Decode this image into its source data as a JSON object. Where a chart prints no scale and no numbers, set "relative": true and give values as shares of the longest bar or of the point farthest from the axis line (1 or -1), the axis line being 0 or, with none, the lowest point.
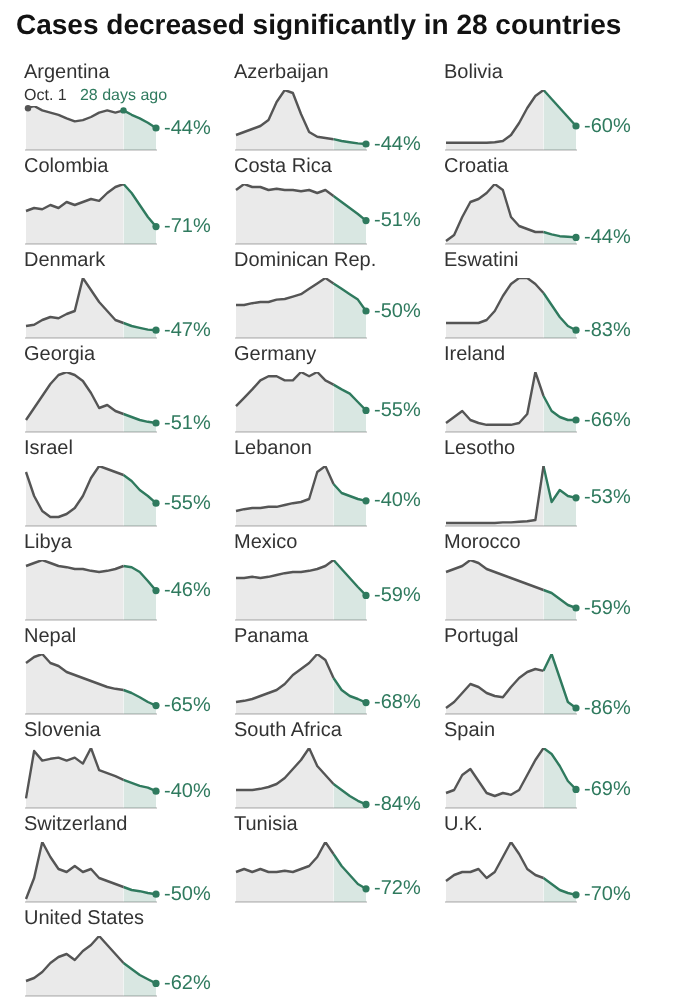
{
  "chart_data": [
    {
      "type": "area",
      "title": "Argentina",
      "relative": true,
      "annotations": [
        "Cases decreased significantly in 28 countries",
        "Oct. 1",
        "28 days ago",
        "-44%"
      ],
      "categories": [
        null,
        null,
        null,
        null,
        null,
        null,
        null,
        null,
        null,
        null,
        null,
        null,
        null,
        null,
        null,
        null,
        null
      ],
      "series": [
        {
          "color": "#555555",
          "values": [
            0.95,
            1,
            0.9,
            0.85,
            0.8,
            0.72,
            0.65,
            0.68,
            0.75,
            0.85,
            0.9,
            0.85,
            0.9,
            null,
            null,
            null,
            null
          ]
        },
        {
          "color": "#2f7a5e",
          "values": [
            null,
            null,
            null,
            null,
            null,
            null,
            null,
            null,
            null,
            null,
            null,
            null,
            0.9,
            0.8,
            0.72,
            0.62,
            0.5
          ]
        }
      ]
    },
    {
      "type": "area",
      "title": "Azerbaijan",
      "relative": true,
      "annotations": [
        "-44%"
      ],
      "categories": [
        null,
        null,
        null,
        null,
        null,
        null,
        null,
        null,
        null,
        null,
        null,
        null,
        null,
        null,
        null,
        null,
        null
      ],
      "series": [
        {
          "color": "#555555",
          "values": [
            0.25,
            0.3,
            0.35,
            0.4,
            0.5,
            0.8,
            1,
            0.95,
            0.6,
            0.3,
            0.22,
            0.2,
            0.18,
            null,
            null,
            null,
            null
          ]
        },
        {
          "color": "#2f7a5e",
          "values": [
            null,
            null,
            null,
            null,
            null,
            null,
            null,
            null,
            null,
            null,
            null,
            null,
            0.18,
            0.15,
            0.13,
            0.11,
            0.1
          ]
        }
      ]
    },
    {
      "type": "area",
      "title": "Bolivia",
      "relative": true,
      "annotations": [
        "-60%"
      ],
      "categories": [
        null,
        null,
        null,
        null,
        null,
        null,
        null,
        null,
        null,
        null,
        null,
        null,
        null,
        null,
        null,
        null,
        null
      ],
      "series": [
        {
          "color": "#555555",
          "values": [
            0.12,
            0.12,
            0.12,
            0.12,
            0.12,
            0.12,
            0.13,
            0.15,
            0.25,
            0.45,
            0.7,
            0.9,
            1,
            null,
            null,
            null,
            null
          ]
        },
        {
          "color": "#2f7a5e",
          "values": [
            null,
            null,
            null,
            null,
            null,
            null,
            null,
            null,
            null,
            null,
            null,
            null,
            1,
            0.85,
            0.7,
            0.55,
            0.4
          ]
        }
      ]
    },
    {
      "type": "area",
      "title": "Colombia",
      "relative": true,
      "annotations": [
        "-71%"
      ],
      "categories": [
        null,
        null,
        null,
        null,
        null,
        null,
        null,
        null,
        null,
        null,
        null,
        null,
        null,
        null,
        null,
        null,
        null
      ],
      "series": [
        {
          "color": "#555555",
          "values": [
            0.55,
            0.6,
            0.58,
            0.65,
            0.6,
            0.7,
            0.65,
            0.7,
            0.75,
            0.72,
            0.85,
            0.95,
            1,
            null,
            null,
            null,
            null
          ]
        },
        {
          "color": "#2f7a5e",
          "values": [
            null,
            null,
            null,
            null,
            null,
            null,
            null,
            null,
            null,
            null,
            null,
            null,
            1,
            0.85,
            0.65,
            0.45,
            0.29
          ]
        }
      ]
    },
    {
      "type": "area",
      "title": "Costa Rica",
      "relative": true,
      "annotations": [
        "-51%"
      ],
      "categories": [
        null,
        null,
        null,
        null,
        null,
        null,
        null,
        null,
        null,
        null,
        null,
        null,
        null,
        null,
        null,
        null,
        null
      ],
      "series": [
        {
          "color": "#555555",
          "values": [
            0.9,
            1,
            0.95,
            0.95,
            0.9,
            0.92,
            0.9,
            0.9,
            0.88,
            0.9,
            0.85,
            0.9,
            0.8,
            null,
            null,
            null,
            null
          ]
        },
        {
          "color": "#2f7a5e",
          "values": [
            null,
            null,
            null,
            null,
            null,
            null,
            null,
            null,
            null,
            null,
            null,
            null,
            0.8,
            0.7,
            0.6,
            0.5,
            0.39
          ]
        }
      ]
    },
    {
      "type": "area",
      "title": "Croatia",
      "relative": true,
      "annotations": [
        "-44%"
      ],
      "categories": [
        null,
        null,
        null,
        null,
        null,
        null,
        null,
        null,
        null,
        null,
        null,
        null,
        null,
        null,
        null,
        null,
        null
      ],
      "series": [
        {
          "color": "#555555",
          "values": [
            0.05,
            0.15,
            0.45,
            0.7,
            0.75,
            0.85,
            1,
            0.9,
            0.45,
            0.3,
            0.25,
            0.2,
            0.2,
            null,
            null,
            null,
            null
          ]
        },
        {
          "color": "#2f7a5e",
          "values": [
            null,
            null,
            null,
            null,
            null,
            null,
            null,
            null,
            null,
            null,
            null,
            null,
            0.2,
            0.16,
            0.13,
            0.12,
            0.11
          ]
        }
      ]
    },
    {
      "type": "area",
      "title": "Denmark",
      "relative": true,
      "annotations": [
        "-47%"
      ],
      "categories": [
        null,
        null,
        null,
        null,
        null,
        null,
        null,
        null,
        null,
        null,
        null,
        null,
        null,
        null,
        null,
        null,
        null
      ],
      "series": [
        {
          "color": "#555555",
          "values": [
            0.2,
            0.22,
            0.3,
            0.35,
            0.33,
            0.4,
            0.45,
            1,
            0.8,
            0.6,
            0.45,
            0.3,
            0.25,
            null,
            null,
            null,
            null
          ]
        },
        {
          "color": "#2f7a5e",
          "values": [
            null,
            null,
            null,
            null,
            null,
            null,
            null,
            null,
            null,
            null,
            null,
            null,
            0.25,
            0.2,
            0.17,
            0.14,
            0.13
          ]
        }
      ]
    },
    {
      "type": "area",
      "title": "Dominican Rep.",
      "relative": true,
      "annotations": [
        "-50%"
      ],
      "categories": [
        null,
        null,
        null,
        null,
        null,
        null,
        null,
        null,
        null,
        null,
        null,
        null,
        null,
        null,
        null,
        null,
        null
      ],
      "series": [
        {
          "color": "#555555",
          "values": [
            0.55,
            0.55,
            0.58,
            0.6,
            0.6,
            0.64,
            0.65,
            0.69,
            0.73,
            0.82,
            0.91,
            1,
            0.91,
            null,
            null,
            null,
            null
          ]
        },
        {
          "color": "#2f7a5e",
          "values": [
            null,
            null,
            null,
            null,
            null,
            null,
            null,
            null,
            null,
            null,
            null,
            null,
            0.91,
            0.82,
            0.73,
            0.64,
            0.45
          ]
        }
      ]
    },
    {
      "type": "area",
      "title": "Eswatini",
      "relative": true,
      "annotations": [
        "-83%"
      ],
      "categories": [
        null,
        null,
        null,
        null,
        null,
        null,
        null,
        null,
        null,
        null,
        null,
        null,
        null,
        null,
        null,
        null,
        null
      ],
      "series": [
        {
          "color": "#555555",
          "values": [
            0.25,
            0.25,
            0.25,
            0.25,
            0.25,
            0.3,
            0.45,
            0.7,
            0.9,
            1,
            1,
            0.9,
            0.75,
            null,
            null,
            null,
            null
          ]
        },
        {
          "color": "#2f7a5e",
          "values": [
            null,
            null,
            null,
            null,
            null,
            null,
            null,
            null,
            null,
            null,
            null,
            null,
            0.75,
            0.55,
            0.35,
            0.2,
            0.13
          ]
        }
      ]
    },
    {
      "type": "area",
      "title": "Georgia",
      "relative": true,
      "annotations": [
        "-51%"
      ],
      "categories": [
        null,
        null,
        null,
        null,
        null,
        null,
        null,
        null,
        null,
        null,
        null,
        null,
        null,
        null,
        null,
        null,
        null
      ],
      "series": [
        {
          "color": "#555555",
          "values": [
            0.2,
            0.4,
            0.6,
            0.8,
            0.95,
            1,
            0.95,
            0.85,
            0.65,
            0.4,
            0.45,
            0.35,
            0.3,
            null,
            null,
            null,
            null
          ]
        },
        {
          "color": "#2f7a5e",
          "values": [
            null,
            null,
            null,
            null,
            null,
            null,
            null,
            null,
            null,
            null,
            null,
            null,
            0.3,
            0.25,
            0.2,
            0.17,
            0.15
          ]
        }
      ]
    },
    {
      "type": "area",
      "title": "Germany",
      "relative": true,
      "annotations": [
        "-55%"
      ],
      "categories": [
        null,
        null,
        null,
        null,
        null,
        null,
        null,
        null,
        null,
        null,
        null,
        null,
        null,
        null,
        null,
        null,
        null
      ],
      "series": [
        {
          "color": "#555555",
          "values": [
            0.43,
            0.57,
            0.71,
            0.86,
            0.93,
            0.93,
            0.86,
            0.86,
            1,
            0.93,
            1,
            0.86,
            0.79,
            null,
            null,
            null,
            null
          ]
        },
        {
          "color": "#2f7a5e",
          "values": [
            null,
            null,
            null,
            null,
            null,
            null,
            null,
            null,
            null,
            null,
            null,
            null,
            0.79,
            0.71,
            0.64,
            0.5,
            0.36
          ]
        }
      ]
    },
    {
      "type": "area",
      "title": "Ireland",
      "relative": true,
      "annotations": [
        "-66%"
      ],
      "categories": [
        null,
        null,
        null,
        null,
        null,
        null,
        null,
        null,
        null,
        null,
        null,
        null,
        null,
        null,
        null,
        null,
        null
      ],
      "series": [
        {
          "color": "#555555",
          "values": [
            0.15,
            0.25,
            0.35,
            0.2,
            0.15,
            0.12,
            0.12,
            0.12,
            0.12,
            0.15,
            0.3,
            1,
            0.6,
            null,
            null,
            null,
            null
          ]
        },
        {
          "color": "#2f7a5e",
          "values": [
            null,
            null,
            null,
            null,
            null,
            null,
            null,
            null,
            null,
            null,
            null,
            null,
            0.6,
            0.35,
            0.25,
            0.2,
            0.2
          ]
        }
      ]
    },
    {
      "type": "area",
      "title": "Israel",
      "relative": true,
      "annotations": [
        "-55%"
      ],
      "categories": [
        null,
        null,
        null,
        null,
        null,
        null,
        null,
        null,
        null,
        null,
        null,
        null,
        null,
        null,
        null,
        null,
        null
      ],
      "series": [
        {
          "color": "#555555",
          "values": [
            0.9,
            0.5,
            0.25,
            0.15,
            0.15,
            0.2,
            0.3,
            0.5,
            0.8,
            1,
            0.95,
            0.9,
            0.85,
            null,
            null,
            null,
            null
          ]
        },
        {
          "color": "#2f7a5e",
          "values": [
            null,
            null,
            null,
            null,
            null,
            null,
            null,
            null,
            null,
            null,
            null,
            null,
            0.85,
            0.75,
            0.6,
            0.5,
            0.38
          ]
        }
      ]
    },
    {
      "type": "area",
      "title": "Lebanon",
      "relative": true,
      "annotations": [
        "-40%"
      ],
      "categories": [
        null,
        null,
        null,
        null,
        null,
        null,
        null,
        null,
        null,
        null,
        null,
        null,
        null,
        null,
        null,
        null,
        null
      ],
      "series": [
        {
          "color": "#555555",
          "values": [
            0.25,
            0.28,
            0.3,
            0.3,
            0.32,
            0.32,
            0.35,
            0.38,
            0.4,
            0.45,
            0.9,
            1,
            0.7,
            null,
            null,
            null,
            null
          ]
        },
        {
          "color": "#2f7a5e",
          "values": [
            null,
            null,
            null,
            null,
            null,
            null,
            null,
            null,
            null,
            null,
            null,
            null,
            0.7,
            0.55,
            0.5,
            0.45,
            0.42
          ]
        }
      ]
    },
    {
      "type": "area",
      "title": "Lesotho",
      "relative": true,
      "annotations": [
        "-53%"
      ],
      "categories": [
        null,
        null,
        null,
        null,
        null,
        null,
        null,
        null,
        null,
        null,
        null,
        null,
        null,
        null,
        null,
        null,
        null
      ],
      "series": [
        {
          "color": "#555555",
          "values": [
            0.05,
            0.05,
            0.05,
            0.05,
            0.05,
            0.05,
            0.05,
            0.06,
            0.06,
            0.07,
            0.08,
            0.1,
            1,
            null,
            null,
            null,
            null
          ]
        },
        {
          "color": "#2f7a5e",
          "values": [
            null,
            null,
            null,
            null,
            null,
            null,
            null,
            null,
            null,
            null,
            null,
            null,
            1,
            0.4,
            0.6,
            0.5,
            0.47
          ]
        }
      ]
    },
    {
      "type": "area",
      "title": "Libya",
      "relative": true,
      "annotations": [
        "-46%"
      ],
      "categories": [
        null,
        null,
        null,
        null,
        null,
        null,
        null,
        null,
        null,
        null,
        null,
        null,
        null,
        null,
        null,
        null,
        null
      ],
      "series": [
        {
          "color": "#555555",
          "values": [
            0.9,
            0.95,
            1,
            0.95,
            0.9,
            0.88,
            0.85,
            0.85,
            0.82,
            0.8,
            0.82,
            0.85,
            0.9,
            null,
            null,
            null,
            null
          ]
        },
        {
          "color": "#2f7a5e",
          "values": [
            null,
            null,
            null,
            null,
            null,
            null,
            null,
            null,
            null,
            null,
            null,
            null,
            0.9,
            0.88,
            0.8,
            0.65,
            0.49
          ]
        }
      ]
    },
    {
      "type": "area",
      "title": "Mexico",
      "relative": true,
      "annotations": [
        "-59%"
      ],
      "categories": [
        null,
        null,
        null,
        null,
        null,
        null,
        null,
        null,
        null,
        null,
        null,
        null,
        null,
        null,
        null,
        null,
        null
      ],
      "series": [
        {
          "color": "#555555",
          "values": [
            0.7,
            0.7,
            0.72,
            0.7,
            0.72,
            0.75,
            0.78,
            0.8,
            0.8,
            0.82,
            0.85,
            0.9,
            1,
            null,
            null,
            null,
            null
          ]
        },
        {
          "color": "#2f7a5e",
          "values": [
            null,
            null,
            null,
            null,
            null,
            null,
            null,
            null,
            null,
            null,
            null,
            null,
            1,
            0.85,
            0.7,
            0.55,
            0.41
          ]
        }
      ]
    },
    {
      "type": "area",
      "title": "Morocco",
      "relative": true,
      "annotations": [
        "-59%"
      ],
      "categories": [
        null,
        null,
        null,
        null,
        null,
        null,
        null,
        null,
        null,
        null,
        null,
        null,
        null,
        null,
        null,
        null,
        null
      ],
      "series": [
        {
          "color": "#555555",
          "values": [
            0.8,
            0.85,
            0.9,
            1,
            0.95,
            0.85,
            0.8,
            0.75,
            0.7,
            0.65,
            0.6,
            0.55,
            0.5,
            null,
            null,
            null,
            null
          ]
        },
        {
          "color": "#2f7a5e",
          "values": [
            null,
            null,
            null,
            null,
            null,
            null,
            null,
            null,
            null,
            null,
            null,
            null,
            0.5,
            0.45,
            0.35,
            0.25,
            0.2
          ]
        }
      ]
    },
    {
      "type": "area",
      "title": "Nepal",
      "relative": true,
      "annotations": [
        "-65%"
      ],
      "categories": [
        null,
        null,
        null,
        null,
        null,
        null,
        null,
        null,
        null,
        null,
        null,
        null,
        null,
        null,
        null,
        null,
        null
      ],
      "series": [
        {
          "color": "#555555",
          "values": [
            0.85,
            0.95,
            1,
            0.85,
            0.8,
            0.7,
            0.65,
            0.6,
            0.55,
            0.5,
            0.45,
            0.42,
            0.4,
            null,
            null,
            null,
            null
          ]
        },
        {
          "color": "#2f7a5e",
          "values": [
            null,
            null,
            null,
            null,
            null,
            null,
            null,
            null,
            null,
            null,
            null,
            null,
            0.4,
            0.35,
            0.28,
            0.2,
            0.14
          ]
        }
      ]
    },
    {
      "type": "area",
      "title": "Panama",
      "relative": true,
      "annotations": [
        "-68%"
      ],
      "categories": [
        null,
        null,
        null,
        null,
        null,
        null,
        null,
        null,
        null,
        null,
        null,
        null,
        null,
        null,
        null,
        null,
        null
      ],
      "series": [
        {
          "color": "#555555",
          "values": [
            0.2,
            0.22,
            0.25,
            0.3,
            0.35,
            0.4,
            0.5,
            0.65,
            0.75,
            0.85,
            1,
            0.9,
            0.6,
            null,
            null,
            null,
            null
          ]
        },
        {
          "color": "#2f7a5e",
          "values": [
            null,
            null,
            null,
            null,
            null,
            null,
            null,
            null,
            null,
            null,
            null,
            null,
            0.6,
            0.4,
            0.3,
            0.25,
            0.19
          ]
        }
      ]
    },
    {
      "type": "area",
      "title": "Portugal",
      "relative": true,
      "annotations": [
        "-86%"
      ],
      "categories": [
        null,
        null,
        null,
        null,
        null,
        null,
        null,
        null,
        null,
        null,
        null,
        null,
        null,
        null,
        null,
        null,
        null
      ],
      "series": [
        {
          "color": "#555555",
          "values": [
            0.1,
            0.2,
            0.35,
            0.5,
            0.45,
            0.35,
            0.3,
            0.28,
            0.45,
            0.6,
            0.7,
            0.75,
            0.72,
            null,
            null,
            null,
            null
          ]
        },
        {
          "color": "#2f7a5e",
          "values": [
            null,
            null,
            null,
            null,
            null,
            null,
            null,
            null,
            null,
            null,
            null,
            null,
            0.72,
            1,
            0.6,
            0.2,
            0.1
          ]
        }
      ]
    },
    {
      "type": "area",
      "title": "Slovenia",
      "relative": true,
      "annotations": [
        "-40%"
      ],
      "categories": [
        null,
        null,
        null,
        null,
        null,
        null,
        null,
        null,
        null,
        null,
        null,
        null,
        null,
        null,
        null,
        null,
        null
      ],
      "series": [
        {
          "color": "#555555",
          "values": [
            0.16,
            0.95,
            0.79,
            0.82,
            0.84,
            0.79,
            0.84,
            0.74,
            1,
            0.63,
            0.58,
            0.53,
            0.47,
            null,
            null,
            null,
            null
          ]
        },
        {
          "color": "#2f7a5e",
          "values": [
            null,
            null,
            null,
            null,
            null,
            null,
            null,
            null,
            null,
            null,
            null,
            null,
            0.47,
            0.42,
            0.37,
            0.34,
            0.28
          ]
        }
      ]
    },
    {
      "type": "area",
      "title": "South Africa",
      "relative": true,
      "annotations": [
        "-84%"
      ],
      "categories": [
        null,
        null,
        null,
        null,
        null,
        null,
        null,
        null,
        null,
        null,
        null,
        null,
        null,
        null,
        null,
        null,
        null
      ],
      "series": [
        {
          "color": "#555555",
          "values": [
            0.3,
            0.3,
            0.3,
            0.32,
            0.35,
            0.4,
            0.5,
            0.65,
            0.8,
            1,
            0.7,
            0.55,
            0.4,
            null,
            null,
            null,
            null
          ]
        },
        {
          "color": "#2f7a5e",
          "values": [
            null,
            null,
            null,
            null,
            null,
            null,
            null,
            null,
            null,
            null,
            null,
            null,
            0.4,
            0.3,
            0.2,
            0.12,
            0.06
          ]
        }
      ]
    },
    {
      "type": "area",
      "title": "Spain",
      "relative": true,
      "annotations": [
        "-69%"
      ],
      "categories": [
        null,
        null,
        null,
        null,
        null,
        null,
        null,
        null,
        null,
        null,
        null,
        null,
        null,
        null,
        null,
        null,
        null
      ],
      "series": [
        {
          "color": "#555555",
          "values": [
            0.25,
            0.3,
            0.55,
            0.65,
            0.45,
            0.25,
            0.2,
            0.25,
            0.22,
            0.3,
            0.55,
            0.8,
            1,
            null,
            null,
            null,
            null
          ]
        },
        {
          "color": "#2f7a5e",
          "values": [
            null,
            null,
            null,
            null,
            null,
            null,
            null,
            null,
            null,
            null,
            null,
            null,
            1,
            0.9,
            0.7,
            0.45,
            0.31
          ]
        }
      ]
    },
    {
      "type": "area",
      "title": "Switzerland",
      "relative": true,
      "annotations": [
        "-50%"
      ],
      "categories": [
        null,
        null,
        null,
        null,
        null,
        null,
        null,
        null,
        null,
        null,
        null,
        null,
        null,
        null,
        null,
        null,
        null
      ],
      "series": [
        {
          "color": "#555555",
          "values": [
            0.05,
            0.4,
            1,
            0.75,
            0.55,
            0.5,
            0.6,
            0.5,
            0.55,
            0.4,
            0.35,
            0.3,
            0.25,
            null,
            null,
            null,
            null
          ]
        },
        {
          "color": "#2f7a5e",
          "values": [
            null,
            null,
            null,
            null,
            null,
            null,
            null,
            null,
            null,
            null,
            null,
            null,
            0.25,
            0.2,
            0.18,
            0.15,
            0.13
          ]
        }
      ]
    },
    {
      "type": "area",
      "title": "Tunisia",
      "relative": true,
      "annotations": [
        "-72%"
      ],
      "categories": [
        null,
        null,
        null,
        null,
        null,
        null,
        null,
        null,
        null,
        null,
        null,
        null,
        null,
        null,
        null,
        null,
        null
      ],
      "series": [
        {
          "color": "#555555",
          "values": [
            0.5,
            0.55,
            0.5,
            0.55,
            0.5,
            0.5,
            0.52,
            0.5,
            0.55,
            0.6,
            0.75,
            1,
            0.8,
            null,
            null,
            null,
            null
          ]
        },
        {
          "color": "#2f7a5e",
          "values": [
            null,
            null,
            null,
            null,
            null,
            null,
            null,
            null,
            null,
            null,
            null,
            null,
            0.8,
            0.6,
            0.45,
            0.3,
            0.22
          ]
        }
      ]
    },
    {
      "type": "area",
      "title": "U.K.",
      "relative": true,
      "annotations": [
        "-70%"
      ],
      "categories": [
        null,
        null,
        null,
        null,
        null,
        null,
        null,
        null,
        null,
        null,
        null,
        null,
        null,
        null,
        null,
        null,
        null
      ],
      "series": [
        {
          "color": "#555555",
          "values": [
            0.35,
            0.45,
            0.5,
            0.5,
            0.55,
            0.4,
            0.5,
            0.75,
            1,
            0.8,
            0.55,
            0.45,
            0.4,
            null,
            null,
            null,
            null
          ]
        },
        {
          "color": "#2f7a5e",
          "values": [
            null,
            null,
            null,
            null,
            null,
            null,
            null,
            null,
            null,
            null,
            null,
            null,
            0.4,
            0.3,
            0.2,
            0.15,
            0.12
          ]
        }
      ]
    },
    {
      "type": "area",
      "title": "United States",
      "relative": true,
      "annotations": [
        "-62%"
      ],
      "categories": [
        null,
        null,
        null,
        null,
        null,
        null,
        null,
        null,
        null,
        null,
        null,
        null,
        null,
        null,
        null,
        null,
        null
      ],
      "series": [
        {
          "color": "#555555",
          "values": [
            0.25,
            0.3,
            0.4,
            0.55,
            0.65,
            0.7,
            0.6,
            0.75,
            0.85,
            1,
            0.85,
            0.7,
            0.55,
            null,
            null,
            null,
            null
          ]
        },
        {
          "color": "#2f7a5e",
          "values": [
            null,
            null,
            null,
            null,
            null,
            null,
            null,
            null,
            null,
            null,
            null,
            null,
            0.55,
            0.45,
            0.35,
            0.28,
            0.21
          ]
        }
      ]
    }
  ]
}
